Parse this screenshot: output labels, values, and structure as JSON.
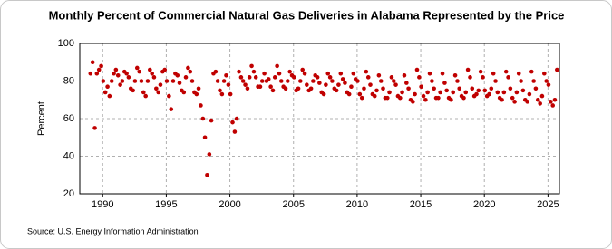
{
  "chart_data": {
    "type": "scatter",
    "title": "Monthly Percent of Commercial Natural Gas Deliveries in Alabama Represented by the Price",
    "y_label": "Percent",
    "source": "Source: U.S. Energy Information Administration",
    "color": "#c00000",
    "grid": true,
    "xlim": [
      1988.2,
      2025.9
    ],
    "xticks": [
      1990,
      1995,
      2000,
      2005,
      2010,
      2015,
      2020,
      2025
    ],
    "ylim": [
      20,
      100
    ],
    "yticks": [
      20,
      40,
      60,
      80,
      100
    ],
    "x": [
      1989.04,
      1989.21,
      1989.38,
      1989.54,
      1989.71,
      1989.88,
      1990.04,
      1990.21,
      1990.38,
      1990.54,
      1990.71,
      1990.88,
      1991.04,
      1991.21,
      1991.38,
      1991.54,
      1991.71,
      1991.88,
      1992.04,
      1992.21,
      1992.38,
      1992.54,
      1992.71,
      1992.88,
      1993.04,
      1993.21,
      1993.38,
      1993.54,
      1993.71,
      1993.88,
      1994.04,
      1994.21,
      1994.38,
      1994.54,
      1994.71,
      1994.88,
      1995.04,
      1995.21,
      1995.38,
      1995.54,
      1995.71,
      1995.88,
      1996.04,
      1996.21,
      1996.38,
      1996.54,
      1996.71,
      1996.88,
      1997.04,
      1997.21,
      1997.38,
      1997.54,
      1997.71,
      1997.88,
      1998.04,
      1998.21,
      1998.38,
      1998.54,
      1998.71,
      1998.88,
      1999.04,
      1999.21,
      1999.38,
      1999.54,
      1999.71,
      1999.88,
      2000.04,
      2000.21,
      2000.38,
      2000.54,
      2000.71,
      2000.88,
      2001.04,
      2001.21,
      2001.38,
      2001.54,
      2001.71,
      2001.88,
      2002.04,
      2002.21,
      2002.38,
      2002.54,
      2002.71,
      2002.88,
      2003.04,
      2003.21,
      2003.38,
      2003.54,
      2003.71,
      2003.88,
      2004.04,
      2004.21,
      2004.38,
      2004.54,
      2004.71,
      2004.88,
      2005.04,
      2005.21,
      2005.38,
      2005.54,
      2005.71,
      2005.88,
      2006.04,
      2006.21,
      2006.38,
      2006.54,
      2006.71,
      2006.88,
      2007.04,
      2007.21,
      2007.38,
      2007.54,
      2007.71,
      2007.88,
      2008.04,
      2008.21,
      2008.38,
      2008.54,
      2008.71,
      2008.88,
      2009.04,
      2009.21,
      2009.38,
      2009.54,
      2009.71,
      2009.88,
      2010.04,
      2010.21,
      2010.38,
      2010.54,
      2010.71,
      2010.88,
      2011.04,
      2011.21,
      2011.38,
      2011.54,
      2011.71,
      2011.88,
      2012.04,
      2012.21,
      2012.38,
      2012.54,
      2012.71,
      2012.88,
      2013.04,
      2013.21,
      2013.38,
      2013.54,
      2013.71,
      2013.88,
      2014.04,
      2014.21,
      2014.38,
      2014.54,
      2014.71,
      2014.88,
      2015.04,
      2015.21,
      2015.38,
      2015.54,
      2015.71,
      2015.88,
      2016.04,
      2016.21,
      2016.38,
      2016.54,
      2016.71,
      2016.88,
      2017.04,
      2017.21,
      2017.38,
      2017.54,
      2017.71,
      2017.88,
      2018.04,
      2018.21,
      2018.38,
      2018.54,
      2018.71,
      2018.88,
      2019.04,
      2019.21,
      2019.38,
      2019.54,
      2019.71,
      2019.88,
      2020.04,
      2020.21,
      2020.38,
      2020.54,
      2020.71,
      2020.88,
      2021.04,
      2021.21,
      2021.38,
      2021.54,
      2021.71,
      2021.88,
      2022.04,
      2022.21,
      2022.38,
      2022.54,
      2022.71,
      2022.88,
      2023.04,
      2023.21,
      2023.38,
      2023.54,
      2023.71,
      2023.88,
      2024.04,
      2024.21,
      2024.38,
      2024.54,
      2024.71,
      2024.88,
      2025.04,
      2025.21,
      2025.38,
      2025.54,
      2025.71
    ],
    "values": [
      84,
      90,
      55,
      84,
      86,
      88,
      80,
      74,
      77,
      72,
      80,
      84,
      86,
      83,
      78,
      80,
      85,
      84,
      82,
      76,
      75,
      80,
      87,
      85,
      80,
      74,
      72,
      80,
      86,
      84,
      82,
      76,
      74,
      78,
      85,
      86,
      80,
      72,
      65,
      80,
      84,
      83,
      79,
      75,
      74,
      82,
      87,
      85,
      80,
      74,
      73,
      76,
      67,
      60,
      50,
      30,
      41,
      59,
      84,
      85,
      80,
      75,
      73,
      80,
      83,
      78,
      73,
      58,
      53,
      60,
      85,
      82,
      80,
      78,
      76,
      82,
      88,
      85,
      82,
      77,
      77,
      80,
      84,
      80,
      81,
      77,
      75,
      82,
      88,
      84,
      80,
      77,
      76,
      80,
      85,
      83,
      82,
      75,
      76,
      80,
      86,
      84,
      78,
      75,
      76,
      80,
      83,
      82,
      79,
      74,
      73,
      78,
      84,
      82,
      80,
      76,
      75,
      78,
      84,
      81,
      79,
      74,
      73,
      77,
      84,
      81,
      80,
      73,
      71,
      76,
      85,
      82,
      78,
      73,
      72,
      75,
      83,
      80,
      76,
      71,
      71,
      74,
      82,
      80,
      78,
      72,
      71,
      74,
      83,
      79,
      76,
      70,
      69,
      73,
      86,
      82,
      77,
      72,
      70,
      74,
      84,
      80,
      76,
      71,
      71,
      74,
      84,
      79,
      75,
      71,
      70,
      74,
      83,
      80,
      76,
      72,
      71,
      74,
      86,
      82,
      76,
      72,
      73,
      75,
      85,
      82,
      75,
      72,
      73,
      76,
      84,
      80,
      74,
      71,
      70,
      74,
      85,
      82,
      76,
      71,
      69,
      74,
      84,
      80,
      75,
      70,
      69,
      73,
      85,
      80,
      76,
      70,
      68,
      72,
      84,
      80,
      78,
      69,
      67,
      70,
      86
    ]
  }
}
